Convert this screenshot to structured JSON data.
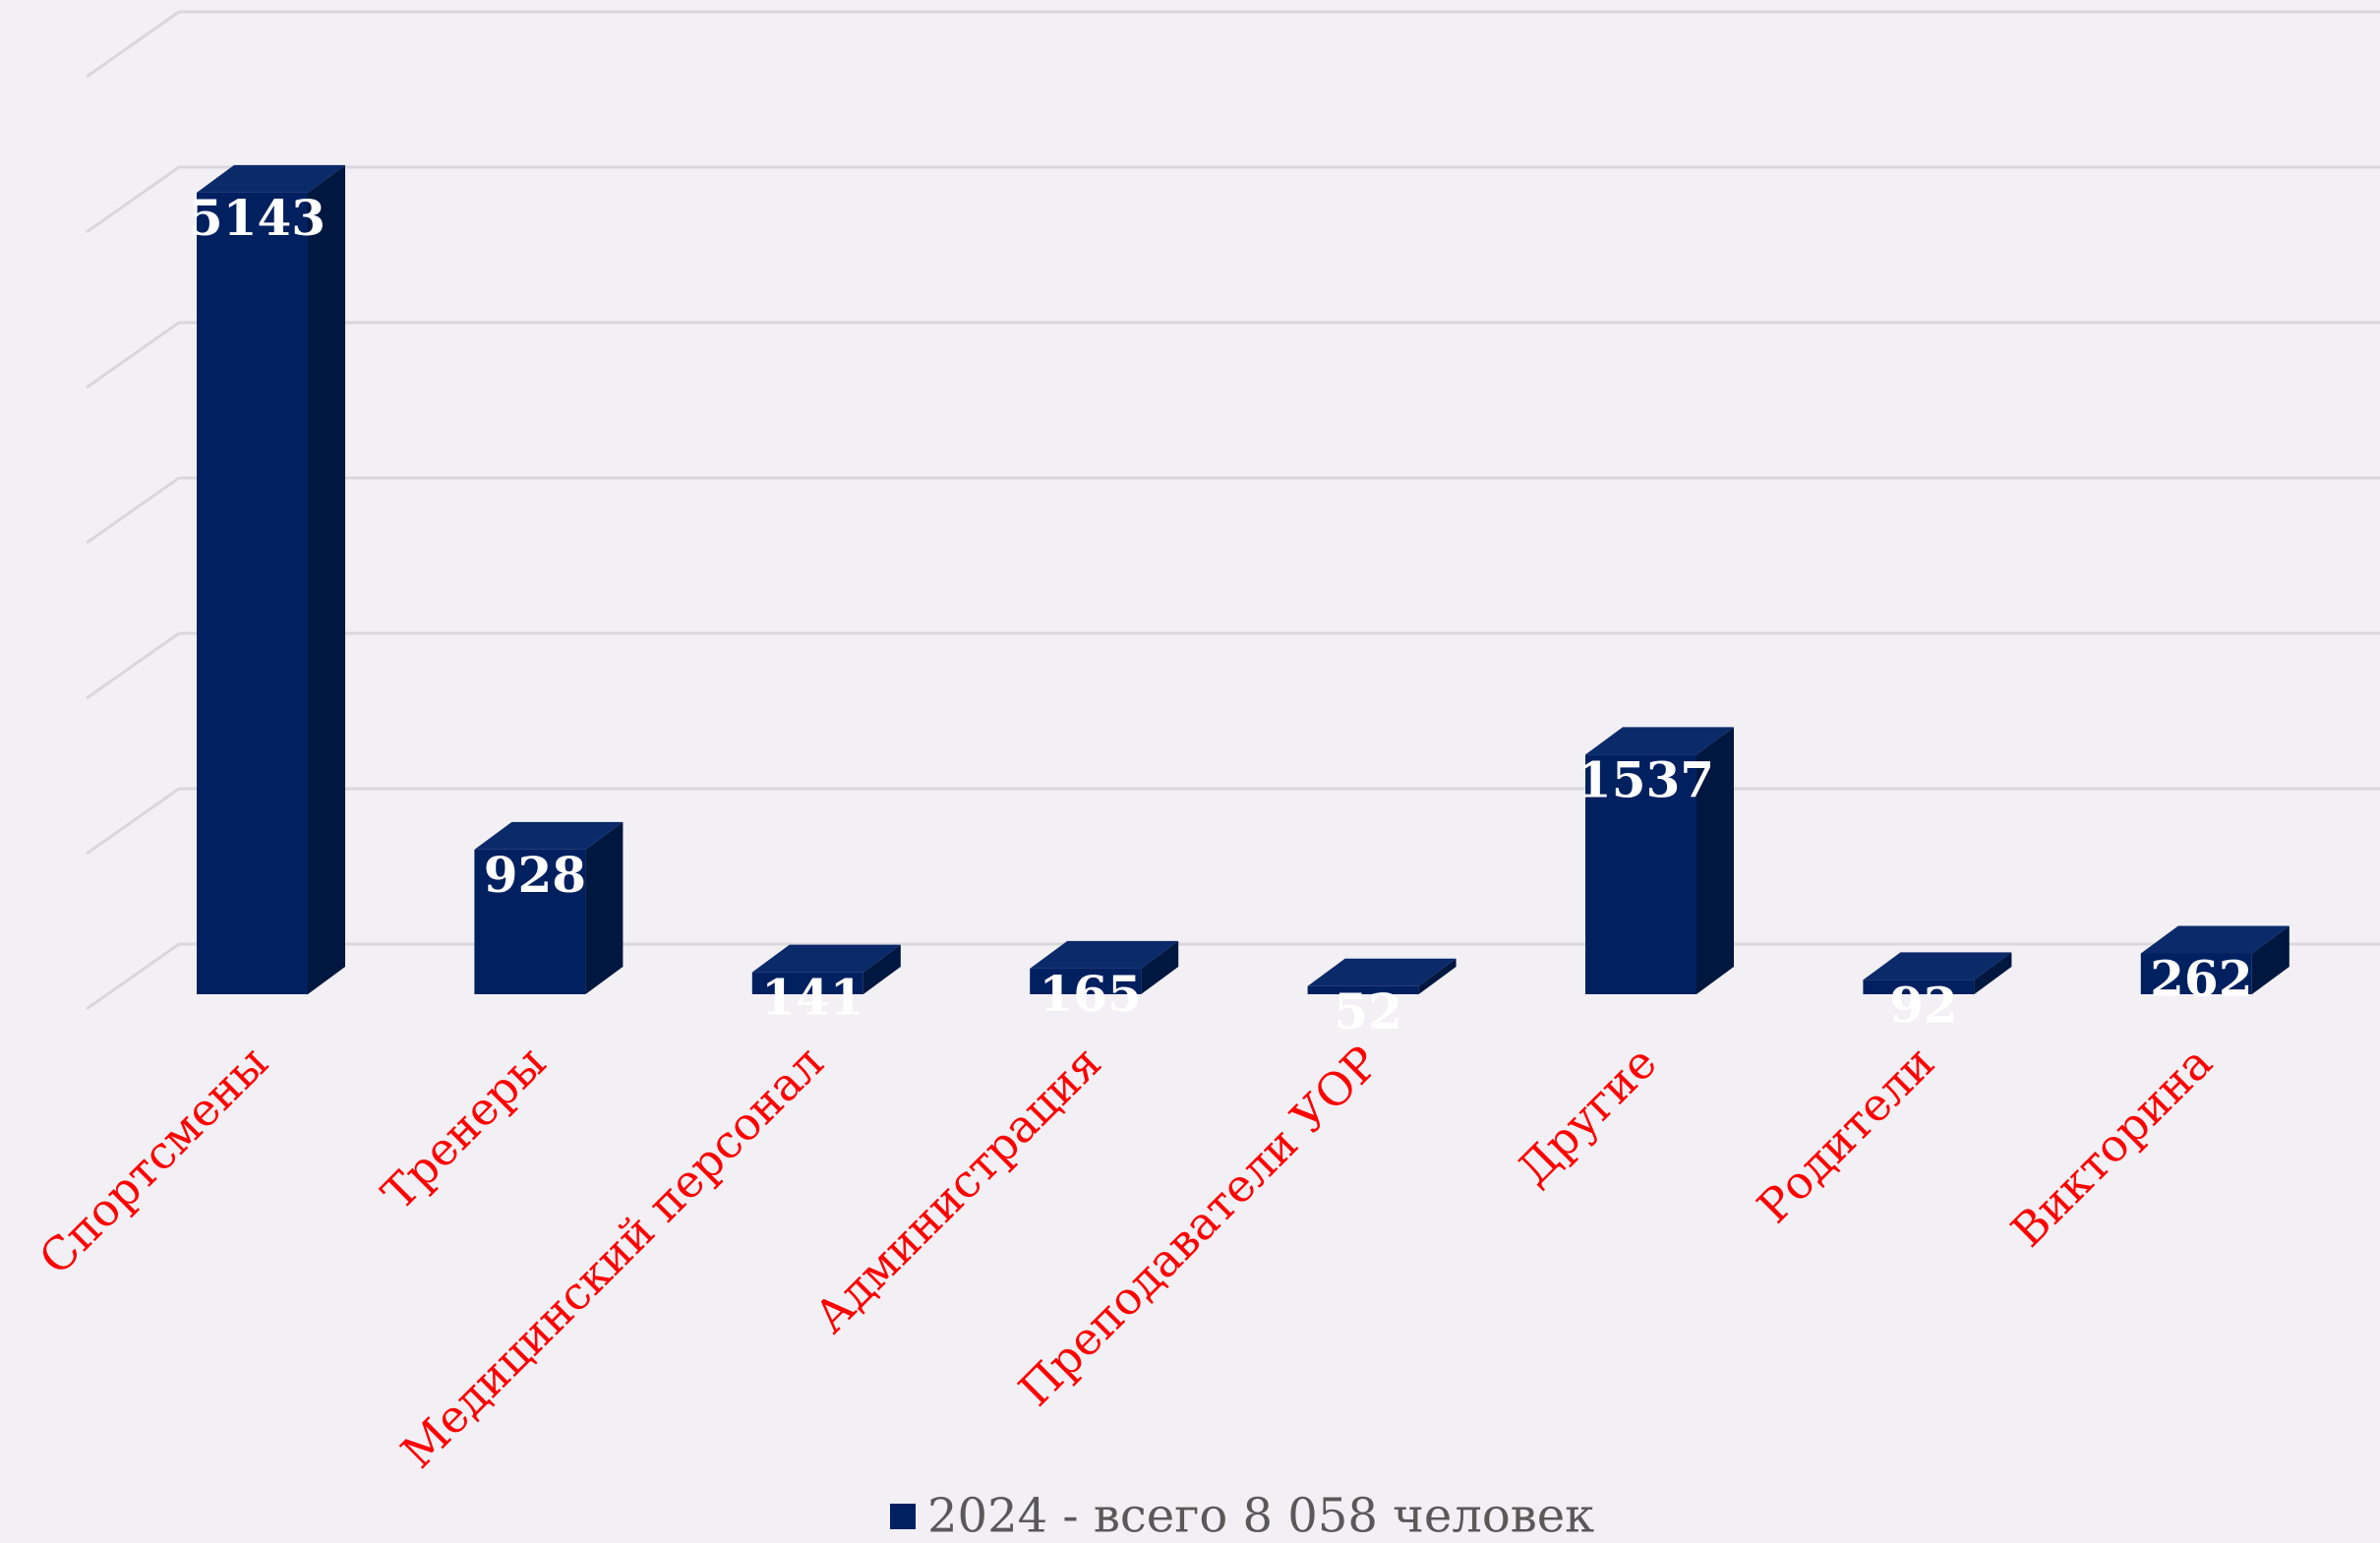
{
  "chart_data": {
    "type": "bar3d",
    "categories": [
      "Спортсмены",
      "Тренеры",
      "Медицинский персонал",
      "Администрация",
      "Преподаватели УОР",
      "Другие",
      "Родители",
      "Викторина"
    ],
    "series": [
      {
        "name": "2024 - всего 8 058 человек",
        "color": "#002060",
        "values": [
          5143,
          928,
          141,
          165,
          52,
          1537,
          92,
          262
        ]
      }
    ],
    "ylim": [
      0,
      6000
    ],
    "yticks": [
      0,
      1000,
      2000,
      3000,
      4000,
      5000,
      6000
    ],
    "grid": true,
    "legend": "bottom"
  }
}
